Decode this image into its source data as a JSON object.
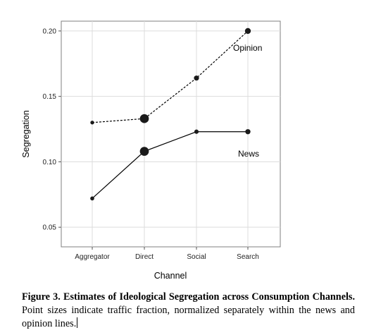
{
  "chart_data": {
    "type": "line",
    "categories": [
      "Aggregator",
      "Direct",
      "Social",
      "Search"
    ],
    "xlabel": "Channel",
    "ylabel": "Segregation",
    "ylim": [
      0.035,
      0.2075
    ],
    "yticks": [
      0.05,
      0.1,
      0.15,
      0.2
    ],
    "ytick_labels": [
      "0.05",
      "0.10",
      "0.15",
      "0.20"
    ],
    "grid": true,
    "series": [
      {
        "name": "Opinion",
        "line_style": "dashed",
        "values": [
          0.13,
          0.133,
          0.164,
          0.2
        ],
        "point_sizes": [
          0.5,
          6,
          1.3,
          2
        ]
      },
      {
        "name": "News",
        "line_style": "solid",
        "values": [
          0.072,
          0.108,
          0.123,
          0.123
        ],
        "point_sizes": [
          0.6,
          6,
          0.8,
          1.4
        ]
      }
    ]
  },
  "caption": {
    "bold": "Figure 3. Estimates of Ideological Segregation across Consumption Channels.",
    "text": "Point sizes indicate traffic fraction, normalized separately within the news and opinion lines."
  }
}
